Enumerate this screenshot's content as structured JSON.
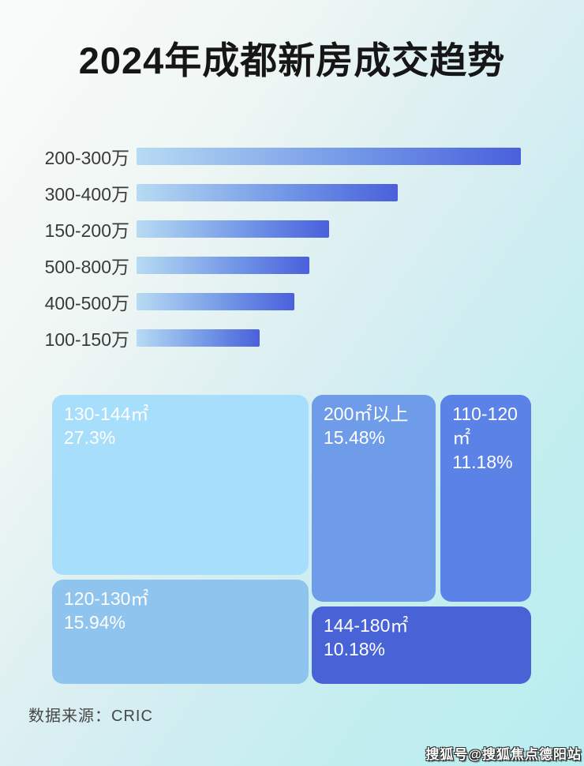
{
  "title": "2024年成都新房成交趋势",
  "footer": {
    "source_label": "数据来源：CRIC"
  },
  "watermark": "搜狐号@搜狐焦点德阳站",
  "colors": {
    "title_text": "#161616",
    "bar_label_text": "#3a3a3a",
    "bar_gradient_start": "#b7dbf3",
    "bar_gradient_end": "#4a60dc",
    "treemap_text": "#ffffff",
    "background_light": "#fafcfb",
    "background_cyan": "#b9edf0"
  },
  "chart_data": [
    {
      "type": "bar",
      "orientation": "horizontal",
      "title": "价格段成交排行（无数值标注，按条长相对比例）",
      "categories": [
        "200-300万",
        "300-400万",
        "150-200万",
        "500-800万",
        "400-500万",
        "100-150万"
      ],
      "values": [
        100,
        68,
        50,
        45,
        41,
        32
      ],
      "value_unit": "percent of longest bar (relative length, chart shows no numeric labels)",
      "xlabel": "",
      "ylabel": "",
      "grid": false,
      "legend": false
    },
    {
      "type": "treemap",
      "title": "面积段成交占比",
      "blocks": [
        {
          "label": "130-144㎡",
          "value_label": "27.3%",
          "value": 27.3,
          "color": "#a7defb",
          "rect": {
            "x": 0,
            "y": 0,
            "w": 53.5,
            "h": 62.3
          }
        },
        {
          "label": "120-130㎡",
          "value_label": "15.94%",
          "value": 15.94,
          "color": "#8ec4ee",
          "rect": {
            "x": 0,
            "y": 63.9,
            "w": 53.5,
            "h": 36.1
          }
        },
        {
          "label": "200㎡以上",
          "value_label": "15.48%",
          "value": 15.48,
          "color": "#6f9ce9",
          "rect": {
            "x": 54.2,
            "y": 0,
            "w": 25.9,
            "h": 71.6
          }
        },
        {
          "label": "110-120㎡",
          "value_label": "11.18%",
          "value": 11.18,
          "color": "#5b82e6",
          "rect": {
            "x": 81.1,
            "y": 0,
            "w": 18.9,
            "h": 71.6
          }
        },
        {
          "label": "144-180㎡",
          "value_label": "10.18%",
          "value": 10.18,
          "color": "#4763d6",
          "rect": {
            "x": 54.2,
            "y": 73.2,
            "w": 45.8,
            "h": 26.8
          }
        }
      ]
    }
  ]
}
